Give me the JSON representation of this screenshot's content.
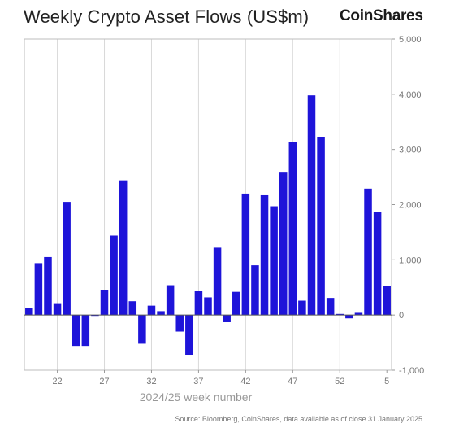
{
  "header": {
    "title": "Weekly Crypto Asset Flows (US$m)",
    "logo_text": "CoinShares"
  },
  "footer": {
    "source": "Source: Bloomberg, CoinShares, data available as of close 31 January 2025"
  },
  "chart_data": {
    "type": "bar",
    "title": "Weekly Crypto Asset Flows (US$m)",
    "xlabel": "2024/25 week number",
    "ylabel": "",
    "ylim": [
      -1000,
      5000
    ],
    "yticks": [
      -1000,
      0,
      1000,
      2000,
      3000,
      4000,
      5000
    ],
    "ytick_labels": [
      "-1,000",
      "0",
      "1,000",
      "2,000",
      "3,000",
      "4,000",
      "5,000"
    ],
    "xtick_labels": [
      "22",
      "27",
      "32",
      "37",
      "42",
      "47",
      "52",
      "5"
    ],
    "xtick_indices": [
      3,
      8,
      13,
      18,
      23,
      28,
      33,
      38
    ],
    "grid": "vertical",
    "bar_color": "#1e14d9",
    "categories": [
      "19",
      "20",
      "21",
      "22",
      "23",
      "24",
      "25",
      "26",
      "27",
      "28",
      "29",
      "30",
      "31",
      "32",
      "33",
      "34",
      "35",
      "36",
      "37",
      "38",
      "39",
      "40",
      "41",
      "42",
      "43",
      "44",
      "45",
      "46",
      "47",
      "48",
      "49",
      "50",
      "51",
      "52",
      "1",
      "2",
      "3",
      "4",
      "5"
    ],
    "values": [
      130,
      940,
      1050,
      200,
      2050,
      -560,
      -560,
      -30,
      450,
      1440,
      2440,
      250,
      -520,
      170,
      70,
      540,
      -300,
      -720,
      430,
      320,
      1220,
      -130,
      420,
      2200,
      900,
      2170,
      1970,
      2580,
      3140,
      260,
      3980,
      3230,
      310,
      20,
      -60,
      40,
      2290,
      1860,
      530
    ]
  }
}
